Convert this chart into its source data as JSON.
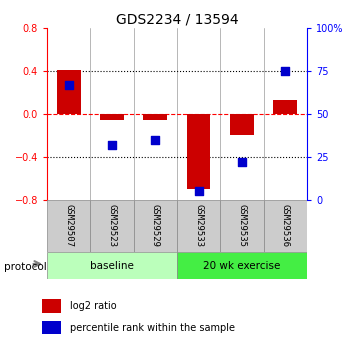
{
  "title": "GDS2234 / 13594",
  "samples": [
    "GSM29507",
    "GSM29523",
    "GSM29529",
    "GSM29533",
    "GSM29535",
    "GSM29536"
  ],
  "log2_ratio": [
    0.41,
    -0.06,
    -0.06,
    -0.7,
    -0.2,
    0.13
  ],
  "percentile_rank": [
    67,
    32,
    35,
    5,
    22,
    75
  ],
  "bar_color": "#cc0000",
  "dot_color": "#0000cc",
  "ylim_left": [
    -0.8,
    0.8
  ],
  "ylim_right": [
    0,
    100
  ],
  "yticks_left": [
    -0.8,
    -0.4,
    0.0,
    0.4,
    0.8
  ],
  "yticks_right": [
    0,
    25,
    50,
    75,
    100
  ],
  "ytick_labels_right": [
    "0",
    "25",
    "50",
    "75",
    "100%"
  ],
  "hlines_dotted": [
    0.4,
    -0.4
  ],
  "hline_dashed": 0.0,
  "protocol_groups": [
    {
      "label": "baseline",
      "start": 0,
      "end": 2,
      "color": "#bbffbb"
    },
    {
      "label": "20 wk exercise",
      "start": 3,
      "end": 5,
      "color": "#44ee44"
    }
  ],
  "legend_items": [
    {
      "label": "log2 ratio",
      "color": "#cc0000"
    },
    {
      "label": "percentile rank within the sample",
      "color": "#0000cc"
    }
  ],
  "protocol_label": "protocol",
  "bar_width": 0.55,
  "dot_size": 28
}
